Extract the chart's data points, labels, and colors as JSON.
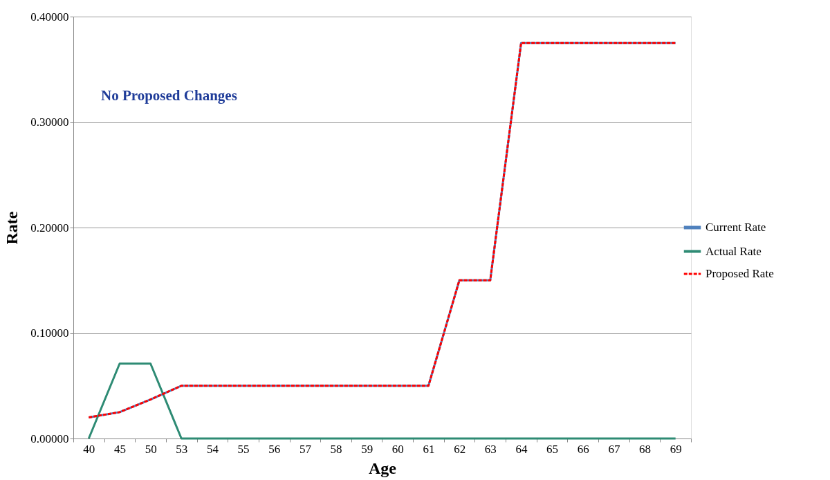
{
  "chart_data": {
    "type": "line",
    "xlabel": "Age",
    "ylabel": "Rate",
    "categories": [
      "40",
      "45",
      "50",
      "53",
      "54",
      "55",
      "56",
      "57",
      "58",
      "59",
      "60",
      "61",
      "62",
      "63",
      "64",
      "65",
      "66",
      "67",
      "68",
      "69"
    ],
    "series": [
      {
        "name": "Current Rate",
        "color": "#4f81bd",
        "line_style": "solid",
        "values": [
          0.02,
          0.025,
          0.037,
          0.05,
          0.05,
          0.05,
          0.05,
          0.05,
          0.05,
          0.05,
          0.05,
          0.05,
          0.15,
          0.15,
          0.375,
          0.375,
          0.375,
          0.375,
          0.375,
          0.375
        ]
      },
      {
        "name": "Actual Rate",
        "color": "#2e8b74",
        "line_style": "solid",
        "values": [
          0,
          0.071,
          0.071,
          0,
          0,
          0,
          0,
          0,
          0,
          0,
          0,
          0,
          0,
          0,
          0,
          0,
          0,
          0,
          0,
          0
        ]
      },
      {
        "name": "Proposed Rate",
        "color": "#ff0000",
        "line_style": "dashed",
        "values": [
          0.02,
          0.025,
          0.037,
          0.05,
          0.05,
          0.05,
          0.05,
          0.05,
          0.05,
          0.05,
          0.05,
          0.05,
          0.15,
          0.15,
          0.375,
          0.375,
          0.375,
          0.375,
          0.375,
          0.375
        ]
      }
    ],
    "ylim": [
      0,
      0.4
    ],
    "yticks": [
      {
        "value": 0,
        "label": "0.00000"
      },
      {
        "value": 0.1,
        "label": "0.10000"
      },
      {
        "value": 0.2,
        "label": "0.20000"
      },
      {
        "value": 0.3,
        "label": "0.30000"
      },
      {
        "value": 0.4,
        "label": "0.40000"
      }
    ],
    "grid": "y",
    "legend": "right",
    "marker": "none",
    "annotations": [
      "No Proposed Changes"
    ]
  }
}
